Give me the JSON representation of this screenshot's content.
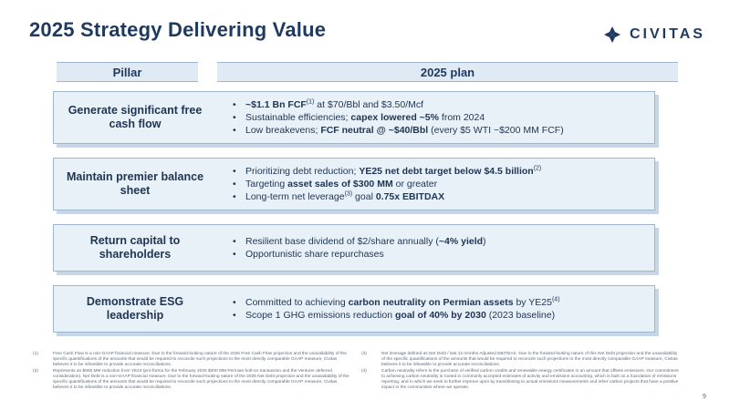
{
  "title": "2025 Strategy Delivering Value",
  "logo": {
    "text": "CIVITAS"
  },
  "headers": {
    "pillar": "Pillar",
    "plan": "2025 plan"
  },
  "rows": [
    {
      "pillar": "Generate significant free cash flow",
      "bullets": [
        [
          {
            "t": "~$1.1 Bn FCF",
            "b": true
          },
          {
            "t": "(1)",
            "sup": true
          },
          {
            "t": " at $70/Bbl and $3.50/Mcf"
          }
        ],
        [
          {
            "t": "Sustainable efficiencies; "
          },
          {
            "t": "capex lowered ~5%",
            "b": true
          },
          {
            "t": " from 2024"
          }
        ],
        [
          {
            "t": "Low breakevens; "
          },
          {
            "t": "FCF neutral @ ~$40/Bbl",
            "b": true
          },
          {
            "t": " (every $5 WTI ~$200 MM FCF)"
          }
        ]
      ]
    },
    {
      "pillar": "Maintain premier balance sheet",
      "bullets": [
        [
          {
            "t": "Prioritizing debt reduction; "
          },
          {
            "t": "YE25 net debt target below $4.5 billion",
            "b": true
          },
          {
            "t": "(2)",
            "sup": true
          }
        ],
        [
          {
            "t": "Targeting "
          },
          {
            "t": "asset sales of $300 MM",
            "b": true
          },
          {
            "t": " or greater"
          }
        ],
        [
          {
            "t": "Long-term net leverage"
          },
          {
            "t": "(3)",
            "sup": true
          },
          {
            "t": " goal "
          },
          {
            "t": "0.75x EBITDAX",
            "b": true
          }
        ]
      ]
    },
    {
      "pillar": "Return capital to shareholders",
      "bullets": [
        [
          {
            "t": "Resilient base dividend of $2/share annually ("
          },
          {
            "t": "~4% yield",
            "b": true
          },
          {
            "t": ")"
          }
        ],
        [
          {
            "t": "Opportunistic share repurchases"
          }
        ]
      ]
    },
    {
      "pillar": "Demonstrate ESG leadership",
      "bullets": [
        [
          {
            "t": "Committed to achieving "
          },
          {
            "t": "carbon neutrality on Permian assets",
            "b": true
          },
          {
            "t": " by YE25"
          },
          {
            "t": "(4)",
            "sup": true
          }
        ],
        [
          {
            "t": "Scope 1 GHG emissions reduction "
          },
          {
            "t": "goal of 40% by 2030",
            "b": true
          },
          {
            "t": " (2023 baseline)"
          }
        ]
      ]
    }
  ],
  "footnotes": {
    "left": [
      {
        "num": "(1)",
        "text": "Free Cash Flow is a non-GAAP financial measure. Due to the forward-looking nature of the 2025 Free Cash Flow projection and the unavailability of the specific quantifications of the amounts that would be required to reconcile such projections to the most directly comparable GAAP measure, Civitas believes it to be infeasible to provide accurate reconciliations."
      },
      {
        "num": "(2)",
        "text": "Represents an $800 MM reduction from YE24 (pro-forma for the February 2025 $300 MM Permian bolt-on transaction and the Venturer deferred consideration). Net Debt is a non-GAAP financial measure. Due to the forward-looking nature of the 2025 Net Debt projection and the unavailability of the specific quantifications of the amounts that would be required to reconcile such projections to the most directly comparable GAAP measure, Civitas believes it to be infeasible to provide accurate reconciliations."
      }
    ],
    "right": [
      {
        "num": "(3)",
        "text": "Net leverage defined as Net Debt / last 12 months Adjusted EBITDAX. Due to the forward-looking nature of this Net Debt projection and the unavailability of the specific quantifications of the amounts that would be required to reconcile such projections to the most directly comparable GAAP measure, Civitas believes it to be infeasible to provide accurate reconciliations."
      },
      {
        "num": "(4)",
        "text": "Carbon neutrality refers to the purchase of verified carbon credits and renewable energy certificates in an amount that offsets emissions. Our commitment to achieving carbon neutrality is rooted in commonly accepted estimates of activity and emissions accounting, which is built on a foundation of emissions reporting, and in which we seek to further improve upon by transitioning to actual emissions measurements and other carbon projects that have a positive impact in the communities where we operate."
      }
    ]
  },
  "page_number": "9",
  "colors": {
    "title": "#1f3a5f",
    "row_bg": "#e8f0f8",
    "border": "#9fb6cf"
  }
}
